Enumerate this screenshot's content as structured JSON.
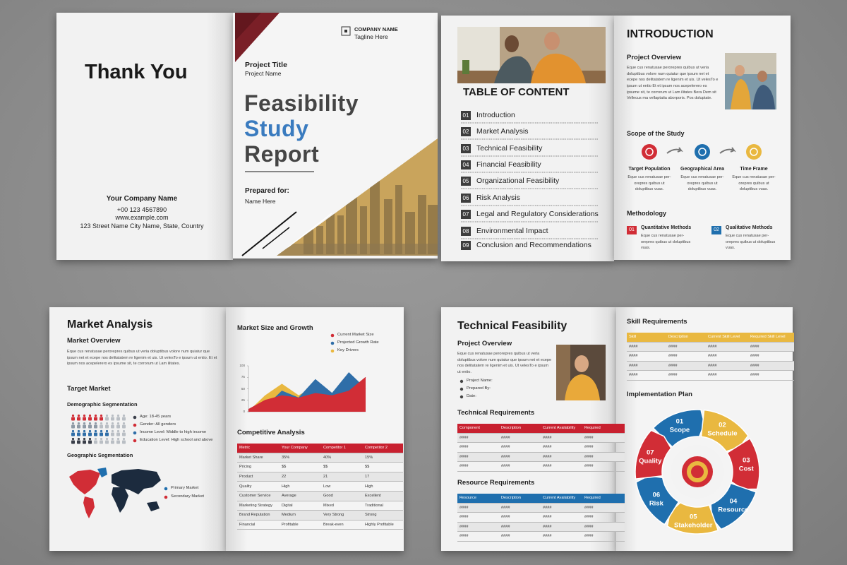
{
  "back_cover": {
    "title": "Thank You",
    "company": "Your Company Name",
    "phone": "+00 123 4567890",
    "website": "www.example.com",
    "address": "123 Street Name City Name, State, Country"
  },
  "cover": {
    "company_name": "COMPANY NAME",
    "tagline": "Tagline Here",
    "project_title": "Project Title",
    "project_name": "Project Name",
    "title": [
      "Feasibility",
      "Study",
      "Report"
    ],
    "prepared_for": "Prepared for:",
    "prepared_name": "Name Here"
  },
  "table_of_content": {
    "title": "TABLE OF CONTENT",
    "items": [
      {
        "number": "01",
        "label": "Introduction"
      },
      {
        "number": "02",
        "label": "Market Analysis"
      },
      {
        "number": "03",
        "label": "Technical Feasibility"
      },
      {
        "number": "04",
        "label": "Financial Feasibility"
      },
      {
        "number": "05",
        "label": "Organizational Feasibility"
      },
      {
        "number": "06",
        "label": "Risk Analysis"
      },
      {
        "number": "07",
        "label": "Legal and Regulatory Considerations"
      },
      {
        "number": "08",
        "label": "Environmental Impact"
      },
      {
        "number": "09",
        "label": "Conclusion and Recommendations"
      }
    ]
  },
  "introduction": {
    "title": "INTRODUCTION",
    "overview_heading": "Project Overview",
    "overview_text": "Eque cus renatusae perorepres quibus ut veria doluptibus volore num quiatur que ipsum net et ecepe nos delitatatem re ligenim et uis. Ut velesTo e ipsum ut entio Et et ipsum nos acepelerero es ipsume sit, te corrorum ut Lam ilitates Bera Dem sit Vellecus ma vellaptatia aborporis. Pos doluptate.",
    "scope_heading": "Scope of the Study",
    "scope_items": [
      {
        "label": "Target Population",
        "text": "Eque cus renatusae per-orepres quibus ut doluptibus vuas."
      },
      {
        "label": "Geographical Area",
        "text": "Eque cus renatusae per-orepres quibus ut doluptibus vuas."
      },
      {
        "label": "Time Frame",
        "text": "Eque cus renatusae per-orepres quibus ut doluptibus vuas."
      }
    ],
    "methodology_heading": "Methodology",
    "methods": [
      {
        "number": "01",
        "label": "Quantitative Methods",
        "text": "Eque cus renatusae per-orepres quibus ut doluptibus vuas."
      },
      {
        "number": "02",
        "label": "Qualitative Methods",
        "text": "Eque cus renatusae per-orepres quibus ut doluptibus vuas."
      }
    ]
  },
  "market_analysis": {
    "title": "Market Analysis",
    "overview_heading": "Market Overview",
    "overview_text": "Eque cus renatusae perorepres quibus ut veria doluptibus volore num quiatur que ipsum net et ecepe nos delitatatem re ligenim et uis. Ut velesTo e ipsum ut entio. Et et ipsum nos acepelerero es ipsume sit, te corrorum ut Lam ilitates.",
    "target_heading": "Target Market",
    "demographic_heading": "Demographic Segmentation",
    "demographics": [
      "Age: 18-45 years",
      "Gender: All genders",
      "Income Level: Middle to high income",
      "Education Level: High school and above"
    ],
    "geographic_heading": "Geographic Segmentation",
    "geographic_legend": [
      "Primary Market",
      "Secondary Market"
    ],
    "chart": {
      "type": "area",
      "title": "Market Size and Growth",
      "ylim": [
        0,
        100
      ],
      "yticks": [
        0,
        25,
        50,
        75,
        100
      ],
      "series": [
        {
          "name": "Current Market Size",
          "color": "#d12d36",
          "values": [
            5,
            25,
            35,
            30,
            40,
            35,
            45,
            75
          ]
        },
        {
          "name": "Projected Growth Rate",
          "color": "#2f6ea8",
          "values": [
            0,
            10,
            45,
            30,
            70,
            40,
            85,
            50
          ]
        },
        {
          "name": "Key Drivers",
          "color": "#e9b840",
          "values": [
            0,
            35,
            60,
            35,
            55,
            40,
            55,
            45
          ]
        }
      ]
    },
    "competitive": {
      "title": "Competitive Analysis",
      "columns": [
        "Metric",
        "Your Company",
        "Competitor 1",
        "Competitor 2"
      ],
      "rows": [
        [
          "Market Share",
          "35%",
          "40%",
          "15%"
        ],
        [
          "Pricing",
          "$$",
          "$$",
          "$$"
        ],
        [
          "Product",
          "22",
          "21",
          "17"
        ],
        [
          "Quality",
          "High",
          "Low",
          "High"
        ],
        [
          "Customer Service",
          "Average",
          "Good",
          "Excellent"
        ],
        [
          "Marketing Strategy",
          "Digital",
          "Mixed",
          "Traditional"
        ],
        [
          "Brand Reputation",
          "Medium",
          "Very Strong",
          "Strong"
        ],
        [
          "Financial",
          "Profitable",
          "Break-even",
          "Highly Profitable"
        ]
      ]
    }
  },
  "technical_feasibility": {
    "title": "Technical Feasibility",
    "overview_heading": "Project Overview",
    "overview_text": "Eque cus renatusae perorepres quibus ut veria doluptibus volore num quiatur que ipsum net et ecepe nos delitatatem re ligenim et uis. Ut velesTo e ipsum ut entio.",
    "details": [
      "Project Name:",
      "Prepared By:",
      "Date:"
    ],
    "technical_requirements": {
      "title": "Technical Requirements",
      "columns": [
        "Component",
        "Description",
        "Current Availability",
        "Required"
      ],
      "rows": [
        [
          "####",
          "####",
          "####",
          "####"
        ],
        [
          "####",
          "####",
          "####",
          "####"
        ],
        [
          "####",
          "####",
          "####",
          "####"
        ],
        [
          "####",
          "####",
          "####",
          "####"
        ]
      ]
    },
    "resource_requirements": {
      "title": "Resource Requirements",
      "columns": [
        "Resource",
        "Description",
        "Current Availability",
        "Required"
      ],
      "rows": [
        [
          "####",
          "####",
          "####",
          "####"
        ],
        [
          "####",
          "####",
          "####",
          "####"
        ],
        [
          "####",
          "####",
          "####",
          "####"
        ],
        [
          "####",
          "####",
          "####",
          "####"
        ]
      ]
    },
    "skill_requirements": {
      "title": "Skill Requirements",
      "columns": [
        "Skill",
        "Description",
        "Current Skill Level",
        "Required Skill Level"
      ],
      "rows": [
        [
          "####",
          "####",
          "####",
          "####"
        ],
        [
          "####",
          "####",
          "####",
          "####"
        ],
        [
          "####",
          "####",
          "####",
          "####"
        ],
        [
          "####",
          "####",
          "####",
          "####"
        ]
      ]
    },
    "implementation_plan": {
      "title": "Implementation Plan",
      "steps": [
        {
          "number": "01",
          "label": "Scope"
        },
        {
          "number": "02",
          "label": "Schedule"
        },
        {
          "number": "03",
          "label": "Cost"
        },
        {
          "number": "04",
          "label": "Resource"
        },
        {
          "number": "05",
          "label": "Stakeholder"
        },
        {
          "number": "06",
          "label": "Risk"
        },
        {
          "number": "07",
          "label": "Quality"
        }
      ]
    }
  }
}
